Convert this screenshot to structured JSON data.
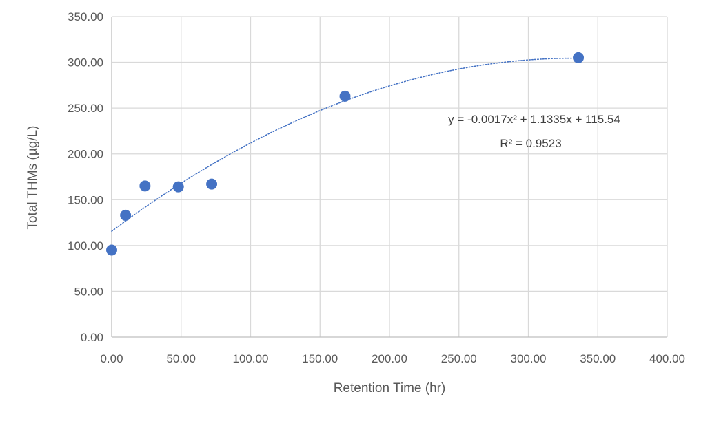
{
  "chart_data": {
    "type": "scatter",
    "xlabel": "Retention Time (hr)",
    "ylabel": "Total THMs (µg/L)",
    "xlim": [
      0,
      400
    ],
    "ylim": [
      0,
      350
    ],
    "x_ticks": [
      "0.00",
      "50.00",
      "100.00",
      "150.00",
      "200.00",
      "250.00",
      "300.00",
      "350.00",
      "400.00"
    ],
    "y_ticks": [
      "0.00",
      "50.00",
      "100.00",
      "150.00",
      "200.00",
      "250.00",
      "300.00",
      "350.00"
    ],
    "grid": true,
    "series": [
      {
        "color": "#4472c4",
        "x": [
          0,
          10,
          24,
          48,
          72,
          168,
          336
        ],
        "y": [
          95,
          133,
          165,
          164,
          167,
          263,
          305
        ]
      }
    ],
    "trendline": {
      "type": "polynomial",
      "order": 2,
      "coefficients": [
        -0.0017,
        1.1335,
        115.54
      ],
      "color": "#4472c4",
      "style": "dotted",
      "x_range": [
        0,
        336
      ],
      "equation": "y = -0.0017x² + 1.1335x + 115.54",
      "r_squared": "R² = 0.9523"
    }
  }
}
